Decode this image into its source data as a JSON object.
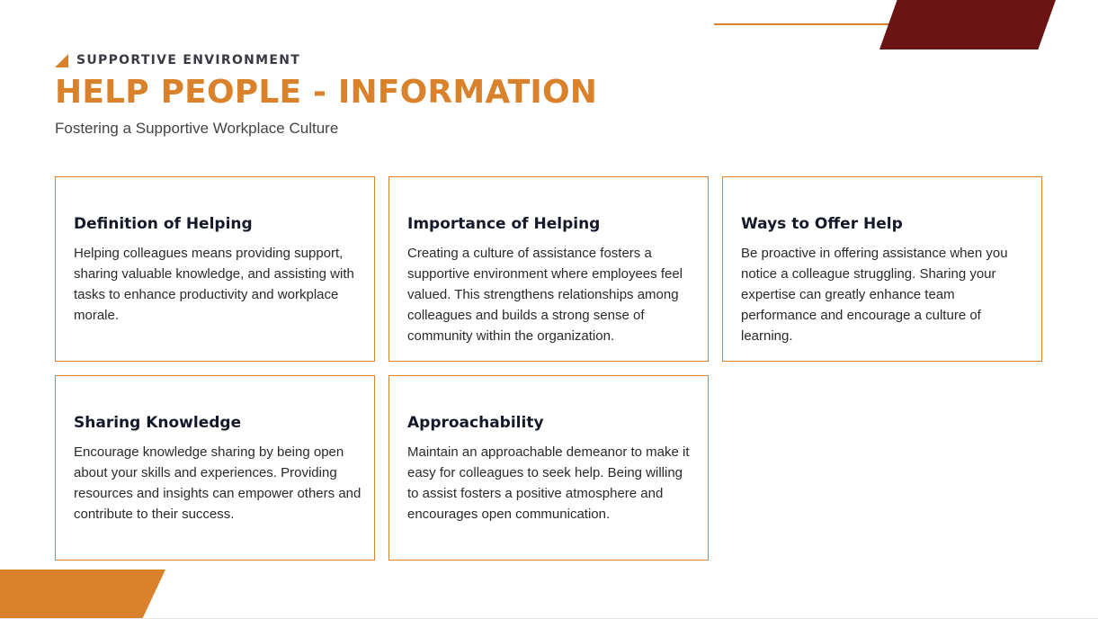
{
  "header": {
    "eyebrow": "SUPPORTIVE ENVIRONMENT",
    "title": "HELP PEOPLE - INFORMATION",
    "subtitle": "Fostering a Supportive Workplace Culture"
  },
  "cards": [
    {
      "title": "Definition of Helping",
      "body": "Helping colleagues means providing support, sharing valuable knowledge, and assisting with tasks to enhance productivity and workplace morale."
    },
    {
      "title": "Importance of Helping",
      "body": "Creating a culture of assistance fosters a supportive environment where employees feel valued. This strengthens relationships among colleagues and builds a strong sense of community within the organization."
    },
    {
      "title": "Ways to Offer Help",
      "body": "Be proactive in offering assistance when you notice a colleague struggling. Sharing your expertise can greatly enhance team performance and encourage a culture of learning."
    },
    {
      "title": "Sharing Knowledge",
      "body": "Encourage knowledge sharing by being open about your skills and experiences. Providing resources and insights can empower others and contribute to their success."
    },
    {
      "title": "Approachability",
      "body": "Maintain an approachable demeanor to make it easy for colleagues to seek help. Being willing to assist fosters a positive atmosphere and encourages open communication."
    }
  ],
  "colors": {
    "accent": "#D9822B",
    "dark_accent": "#6B1414",
    "heading_text": "#16192A"
  }
}
